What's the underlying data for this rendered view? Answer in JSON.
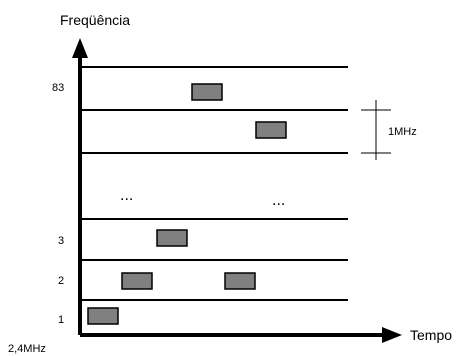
{
  "diagram": {
    "y_axis_title": "Freqüência",
    "x_axis_title": "Tempo",
    "origin_label": "2,4MHz",
    "channel_labels": [
      "1",
      "2",
      "3",
      "83"
    ],
    "ellipsis": "...",
    "spacing_label": "1MHz",
    "colors": {
      "line": "#000000",
      "block_fill": "#808080",
      "block_stroke": "#000000"
    }
  }
}
